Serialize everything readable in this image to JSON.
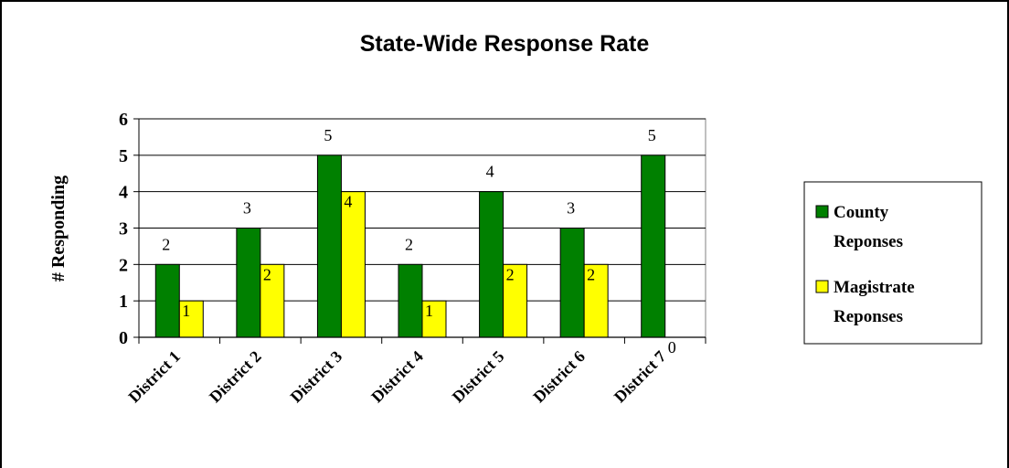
{
  "chart_data": {
    "type": "bar",
    "title": "State-Wide Response Rate",
    "ylabel": "# Responding",
    "xlabel": "",
    "ylim": [
      0,
      6
    ],
    "yticks": [
      "0",
      "1",
      "2",
      "3",
      "4",
      "5",
      "6"
    ],
    "grid": true,
    "legend_position": "right",
    "categories": [
      "District 1",
      "District 2",
      "District 3",
      "District 4",
      "District 5",
      "District 6",
      "District 7"
    ],
    "series": [
      {
        "name_lines": [
          "County",
          "Reponses"
        ],
        "color": "#008000",
        "values": [
          2,
          3,
          5,
          2,
          4,
          3,
          5
        ],
        "labels": [
          "2",
          "3",
          "5",
          "2",
          "4",
          "3",
          "5"
        ]
      },
      {
        "name_lines": [
          "Magistrate",
          "Reponses"
        ],
        "color": "#ffff00",
        "values": [
          1,
          2,
          4,
          1,
          2,
          2,
          0
        ],
        "labels": [
          "1",
          "2",
          "4",
          "1",
          "2",
          "2",
          "0"
        ]
      }
    ]
  }
}
